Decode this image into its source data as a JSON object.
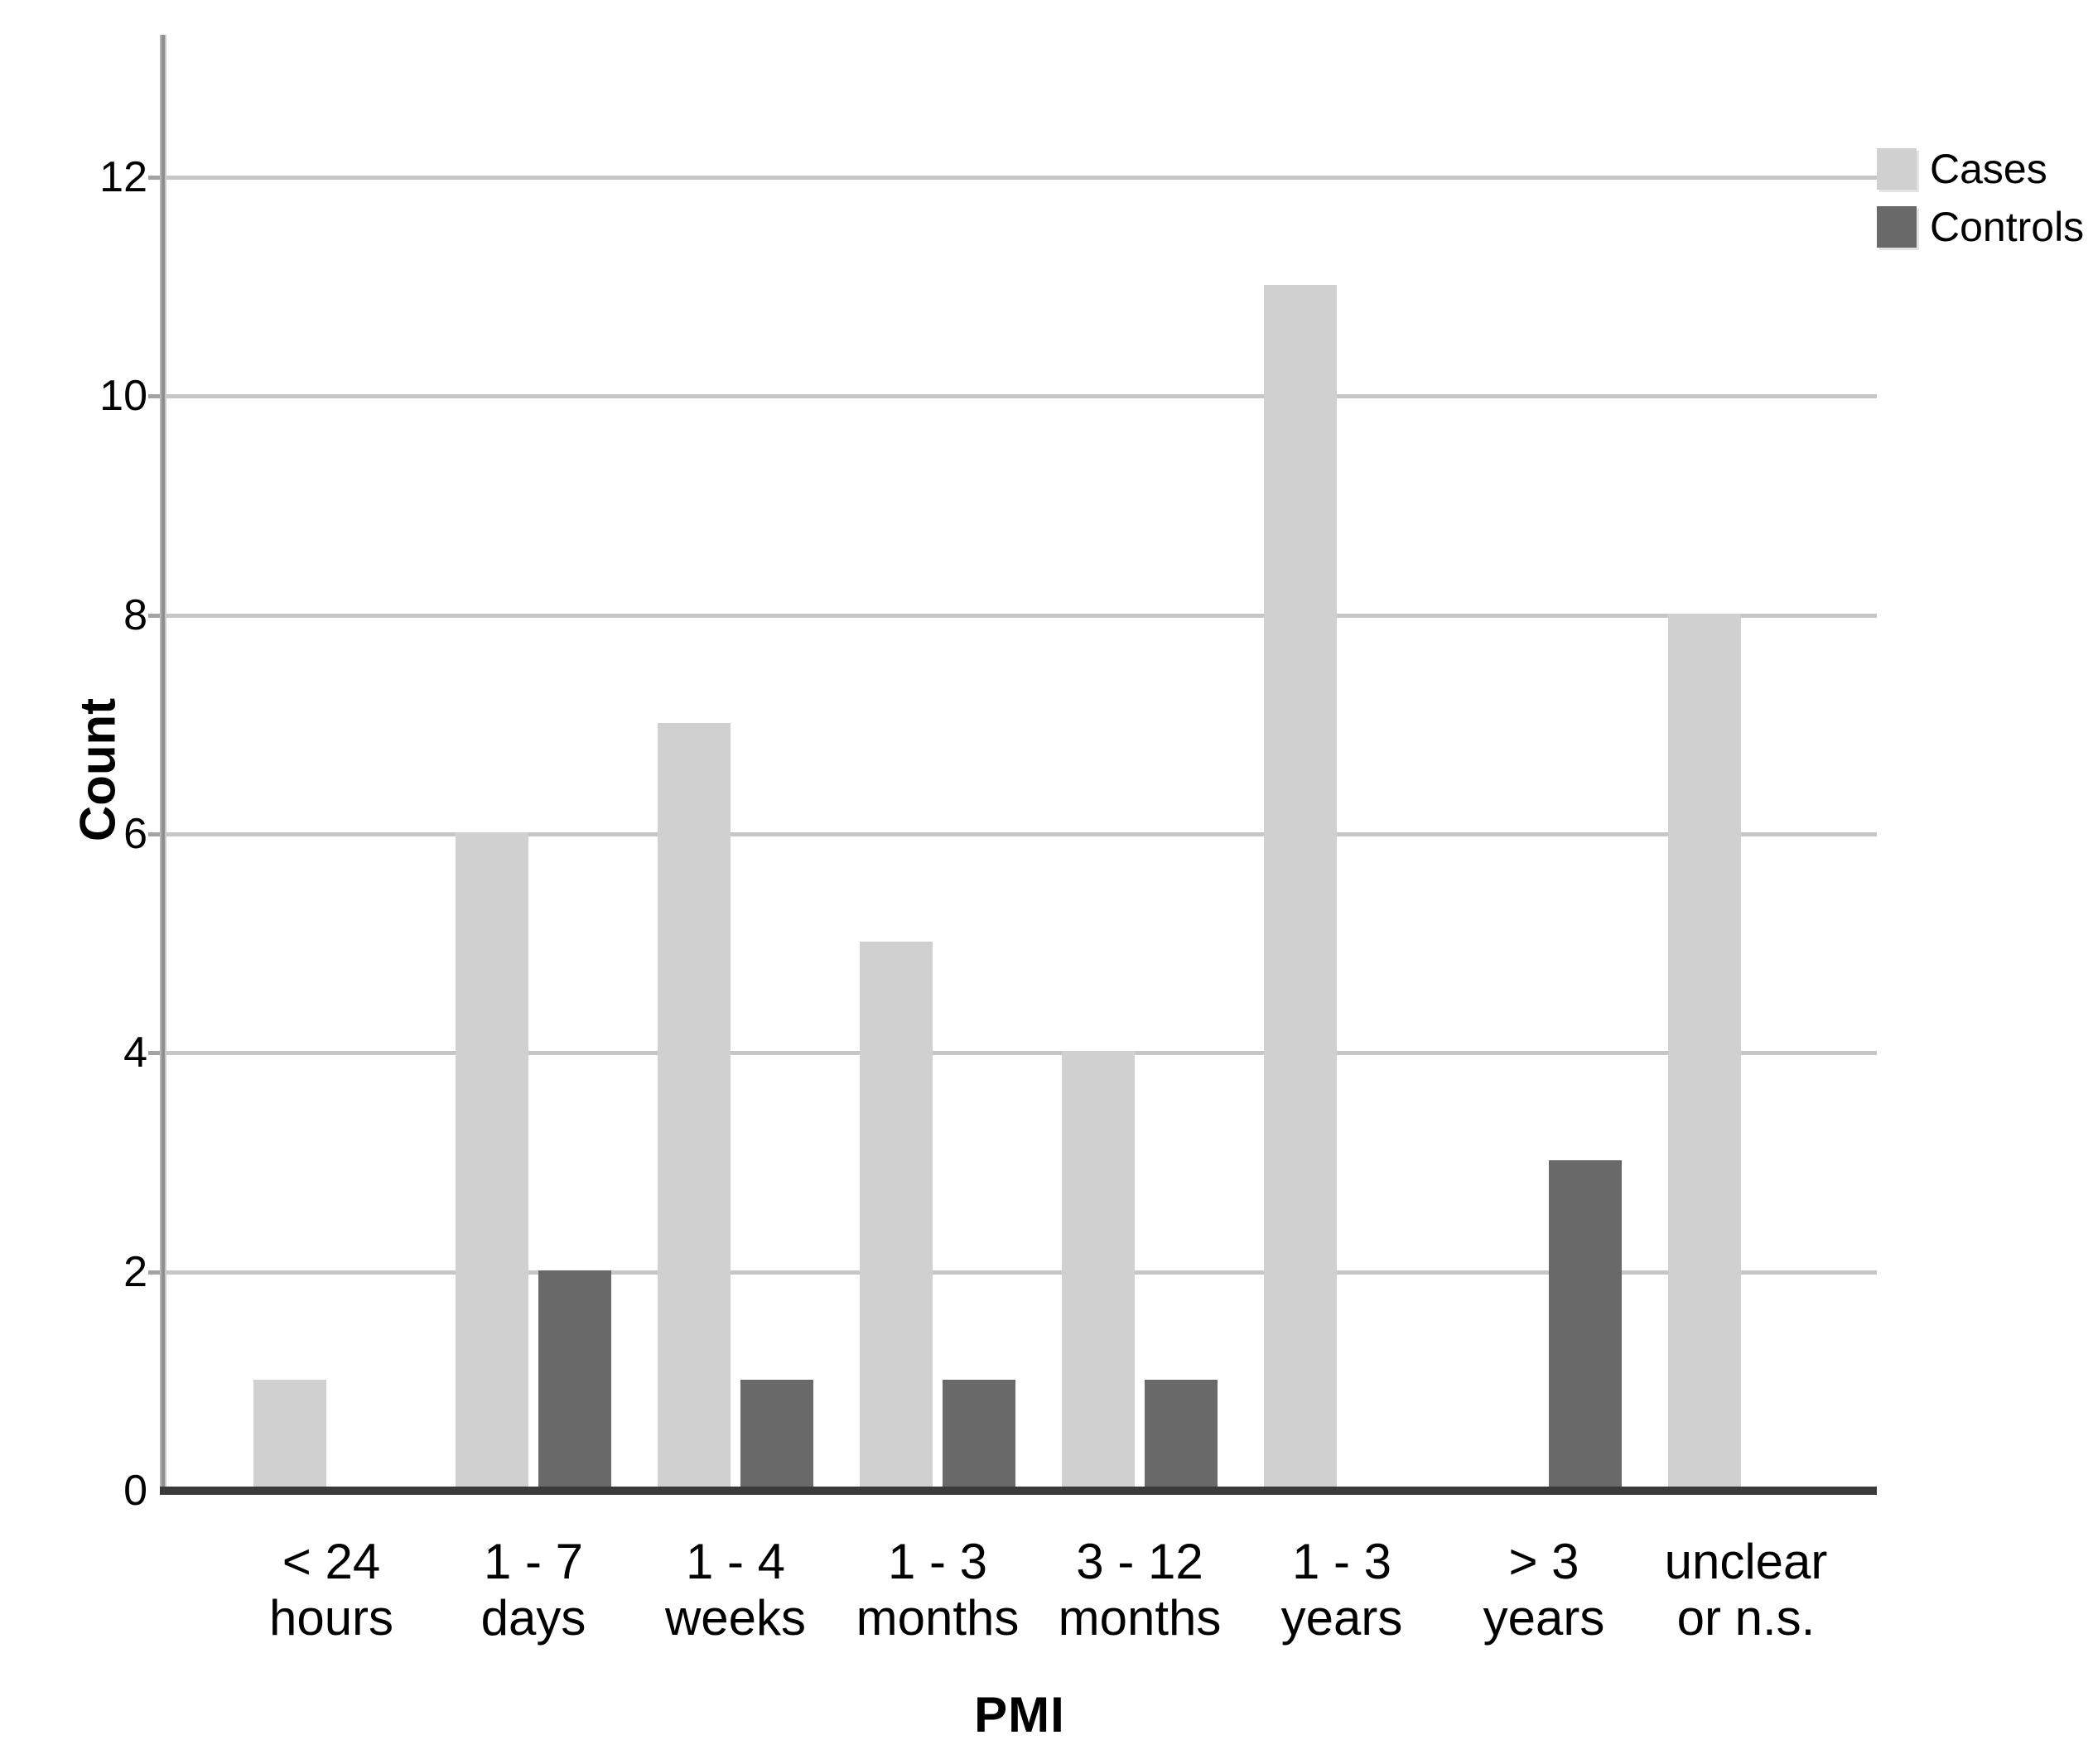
{
  "chart_data": {
    "type": "bar",
    "title": "",
    "xlabel": "PMI",
    "ylabel": "Count",
    "categories": [
      "< 24\nhours",
      "1 - 7\ndays",
      "1 - 4\nweeks",
      "1 - 3\nmonths",
      "3 - 12\nmonths",
      "1 - 3\nyears",
      "> 3\nyears",
      "unclear\nor n.s."
    ],
    "series": [
      {
        "name": "Cases",
        "color": "#d0d0d0",
        "values": [
          1,
          6,
          7,
          5,
          4,
          11,
          0,
          8
        ]
      },
      {
        "name": "Controls",
        "color": "#696969",
        "values": [
          0,
          2,
          1,
          1,
          1,
          0,
          3,
          0
        ]
      }
    ],
    "yticks": [
      0,
      2,
      4,
      6,
      8,
      10,
      12
    ],
    "ylim": [
      0,
      13.3
    ],
    "grid": true,
    "legend_position": "top-right",
    "colors": {
      "gridline": "#c6c6c6",
      "y_axis_line": "#8f8f8f",
      "x_axis_line": "#3a3a3a",
      "background": "#ffffff"
    }
  }
}
